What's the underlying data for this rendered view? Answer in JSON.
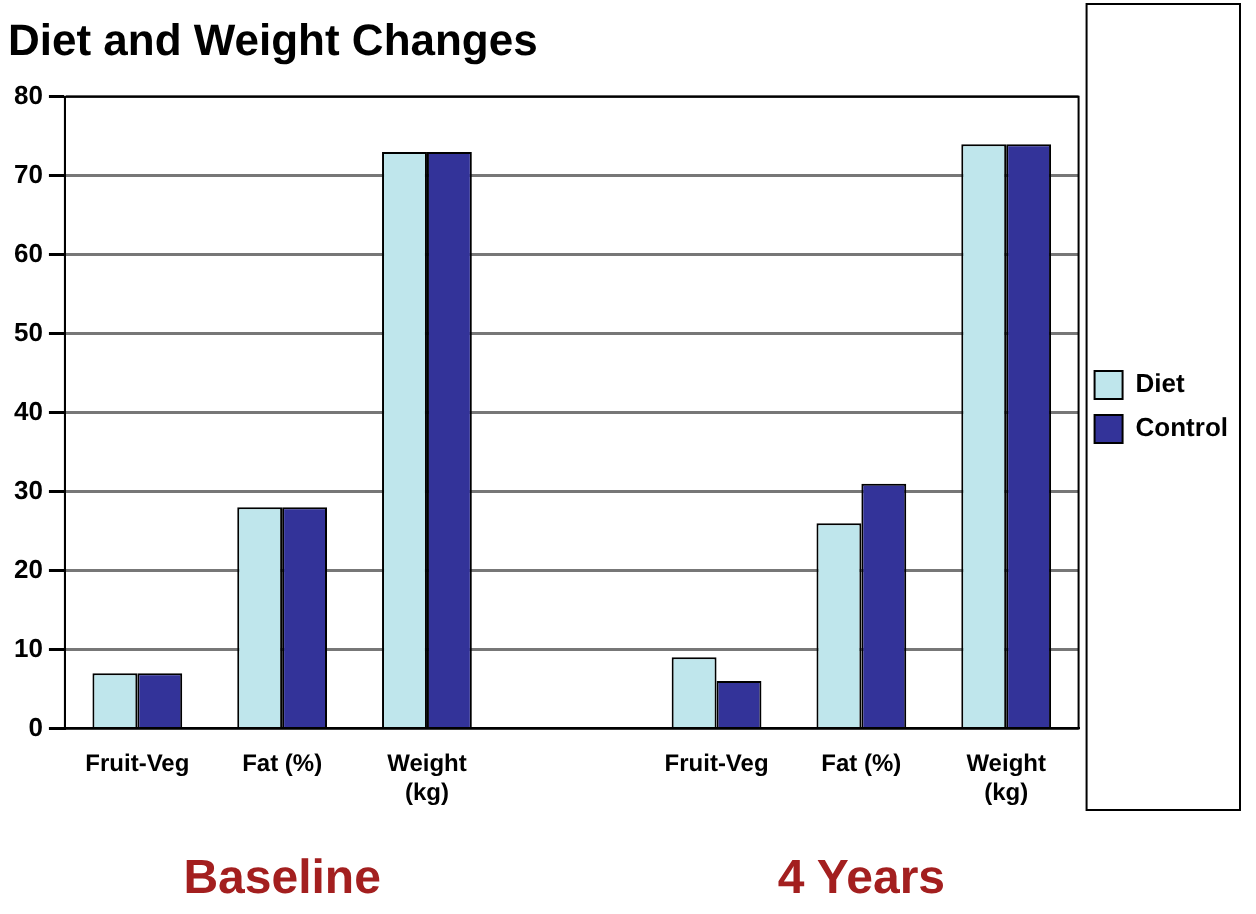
{
  "chart_data": {
    "type": "bar",
    "title": "Diet and Weight Changes",
    "categories": [
      "Fruit-Veg",
      "Fat (%)",
      "Weight (kg)",
      null,
      "Fruit-Veg",
      "Fat (%)",
      "Weight (kg)"
    ],
    "series": [
      {
        "name": "Diet",
        "color": "#bfe6ec",
        "values": [
          7,
          28,
          73,
          null,
          9,
          26,
          74
        ]
      },
      {
        "name": "Control",
        "color": "#333399",
        "values": [
          7,
          28,
          73,
          null,
          6,
          31,
          74
        ]
      }
    ],
    "ylim": [
      0,
      80
    ],
    "yticks": [
      0,
      10,
      20,
      30,
      40,
      50,
      60,
      70,
      80
    ],
    "grid": "y",
    "legend": "right",
    "annotations": [
      "Baseline",
      "4 Years"
    ]
  }
}
